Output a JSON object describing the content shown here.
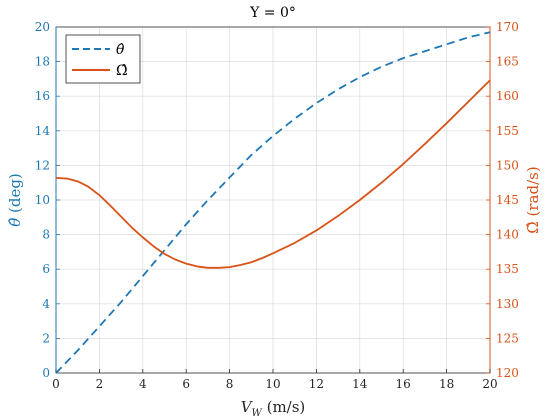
{
  "chart_data": {
    "type": "line",
    "title": "Υ = 0°",
    "xlabel": "V_W (m/s)",
    "xlabel_main": "V",
    "xlabel_sub": "W",
    "xlabel_unit": " (m/s)",
    "ylabel_left": "θ̂ (deg)",
    "ylabel_left_sym": "θ̂",
    "ylabel_left_unit": " (deg)",
    "ylabel_right": "Ω̂ (rad/s)",
    "ylabel_right_sym": "Ω̂",
    "ylabel_right_unit": " (rad/s)",
    "xlim": [
      0,
      20
    ],
    "ylim_left": [
      0,
      20
    ],
    "ylim_right": [
      120,
      170
    ],
    "xticks": [
      0,
      2,
      4,
      6,
      8,
      10,
      12,
      14,
      16,
      18,
      20
    ],
    "yticks_left": [
      0,
      2,
      4,
      6,
      8,
      10,
      12,
      14,
      16,
      18,
      20
    ],
    "yticks_right": [
      120,
      125,
      130,
      135,
      140,
      145,
      150,
      155,
      160,
      165,
      170
    ],
    "grid": true,
    "legend": "top-left",
    "colors": {
      "left_axis": "#1f77b4",
      "right_axis": "#d95319",
      "theta": "#1f77b4",
      "omega": "#d95319"
    },
    "series": [
      {
        "name": "θ̂",
        "axis": "left",
        "style": "dashed",
        "color": "#1f77b4",
        "x": [
          0,
          1,
          2,
          3,
          4,
          5,
          6,
          7,
          8,
          9,
          10,
          11,
          12,
          13,
          14,
          15,
          16,
          17,
          18,
          19,
          20
        ],
        "y": [
          0,
          1.3,
          2.7,
          4.1,
          5.6,
          7.1,
          8.6,
          10.0,
          11.3,
          12.6,
          13.7,
          14.7,
          15.6,
          16.4,
          17.1,
          17.7,
          18.2,
          18.6,
          19.0,
          19.4,
          19.7
        ]
      },
      {
        "name": "Ω̂",
        "axis": "right",
        "style": "solid",
        "color": "#d95319",
        "x": [
          0,
          0.5,
          1,
          1.5,
          2,
          2.5,
          3,
          3.5,
          4,
          4.5,
          5,
          5.5,
          6,
          6.5,
          7,
          7.5,
          8,
          8.5,
          9,
          9.5,
          10,
          11,
          12,
          13,
          14,
          15,
          16,
          17,
          18,
          19,
          20
        ],
        "y": [
          148.2,
          148.1,
          147.7,
          146.9,
          145.7,
          144.2,
          142.6,
          141.0,
          139.6,
          138.3,
          137.2,
          136.4,
          135.8,
          135.4,
          135.2,
          135.2,
          135.3,
          135.6,
          136.0,
          136.6,
          137.3,
          138.8,
          140.6,
          142.7,
          145.0,
          147.5,
          150.2,
          153.1,
          156.1,
          159.2,
          162.3
        ]
      }
    ]
  }
}
